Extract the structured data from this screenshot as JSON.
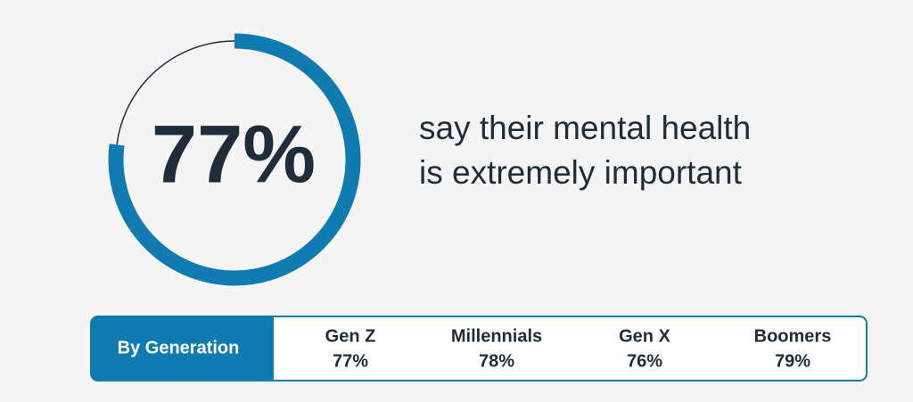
{
  "chart_data": {
    "type": "gauge",
    "value": 77,
    "value_label": "77%",
    "ylim": [
      0,
      100
    ],
    "color": "#0f7bb0",
    "track_color": "#1f2d3a",
    "caption": [
      "say their mental health",
      "is extremely important"
    ],
    "breakdown": {
      "label": "By Generation",
      "categories": [
        "Gen Z",
        "Millennials",
        "Gen X",
        "Boomers"
      ],
      "values": [
        77,
        78,
        76,
        79
      ],
      "value_labels": [
        "77%",
        "78%",
        "76%",
        "79%"
      ]
    }
  }
}
